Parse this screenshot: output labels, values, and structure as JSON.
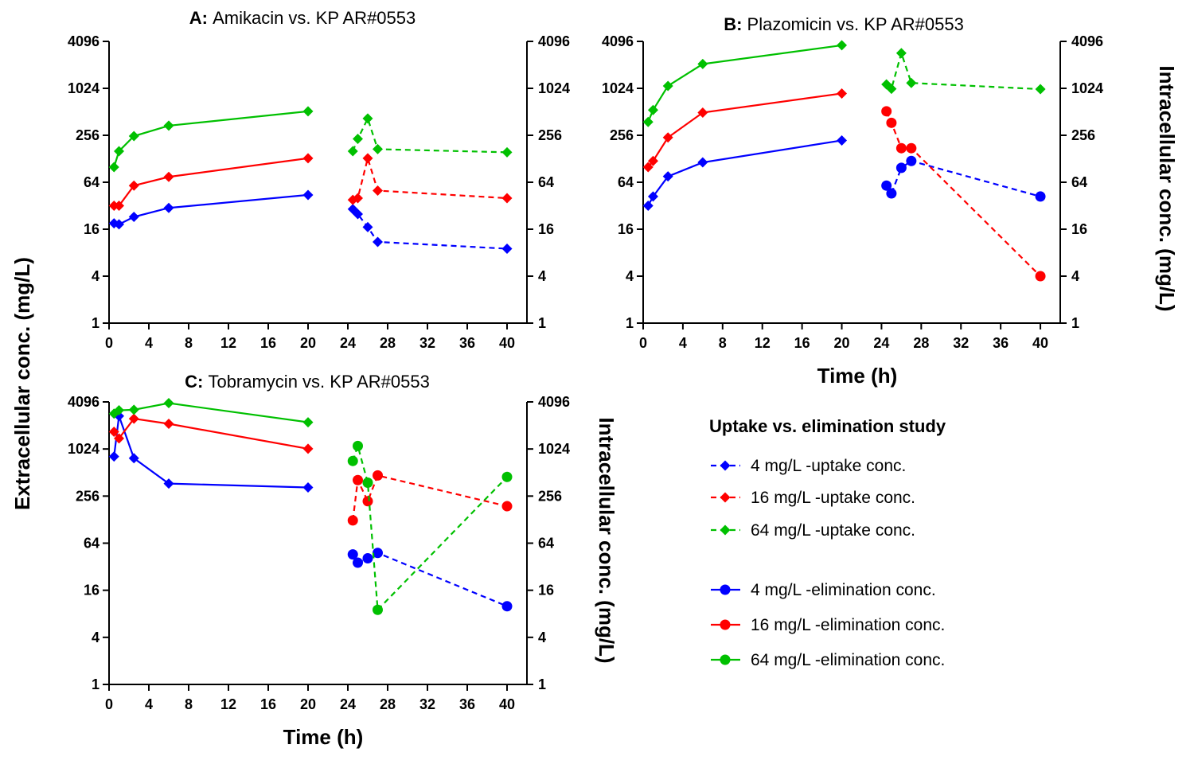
{
  "figure": {
    "ylabel_left": "Extracellular conc. (mg/L)",
    "ylabel_right_B": "Intracellular conc. (mg/L)",
    "ylabel_right_C": "Intracellular conc. (mg/L)",
    "xlabel_B": "Time (h)",
    "xlabel_C": "Time (h)"
  },
  "legend": {
    "title": "Uptake vs. elimination study",
    "entries": [
      {
        "label": "4 mg/L -uptake conc.",
        "color": "#0000ff",
        "line": "dashed",
        "marker": "diamond"
      },
      {
        "label": "16 mg/L -uptake conc.",
        "color": "#ff0000",
        "line": "dashed",
        "marker": "diamond"
      },
      {
        "label": "64 mg/L -uptake conc.",
        "color": "#00c000",
        "line": "dashed",
        "marker": "diamond"
      },
      {
        "label": "4 mg/L -elimination conc.",
        "color": "#0000ff",
        "line": "solid",
        "marker": "circle"
      },
      {
        "label": "16 mg/L -elimination conc.",
        "color": "#ff0000",
        "line": "solid",
        "marker": "circle"
      },
      {
        "label": "64 mg/L -elimination conc.",
        "color": "#00c000",
        "line": "solid",
        "marker": "circle"
      }
    ]
  },
  "chart_data": [
    {
      "panel": "A",
      "type": "line",
      "title_letter": "A:",
      "title": "Amikacin vs. KP AR#0553",
      "x_ticks": [
        "0",
        "4",
        "8",
        "12",
        "16",
        "20",
        "24",
        "28",
        "32",
        "36",
        "40"
      ],
      "xlim": [
        0,
        42
      ],
      "y_scale": "log2",
      "y_ticks": [
        "1",
        "4",
        "16",
        "64",
        "256",
        "1024",
        "4096"
      ],
      "ylim": [
        1,
        4096
      ],
      "extracellular": [
        {
          "color": "#0000ff",
          "marker": "diamond",
          "x": [
            0.5,
            1,
            2.5,
            6,
            20
          ],
          "y": [
            19,
            18.5,
            23,
            30,
            44
          ]
        },
        {
          "color": "#ff0000",
          "marker": "diamond",
          "x": [
            0.5,
            1,
            2.5,
            6,
            20
          ],
          "y": [
            32,
            32,
            58,
            75,
            130
          ]
        },
        {
          "color": "#00c000",
          "marker": "diamond",
          "x": [
            0.5,
            1,
            2.5,
            6,
            20
          ],
          "y": [
            100,
            160,
            250,
            340,
            520
          ]
        }
      ],
      "intracellular": [
        {
          "color": "#0000ff",
          "marker": "diamond",
          "x": [
            24.5,
            25,
            26,
            27,
            40
          ],
          "y": [
            29,
            25,
            17,
            11,
            9
          ]
        },
        {
          "color": "#ff0000",
          "marker": "diamond",
          "x": [
            24.5,
            25,
            26,
            27,
            40
          ],
          "y": [
            38,
            40,
            130,
            50,
            40
          ]
        },
        {
          "color": "#00c000",
          "marker": "diamond",
          "x": [
            24.5,
            25,
            26,
            27,
            40
          ],
          "y": [
            160,
            230,
            420,
            170,
            155
          ]
        }
      ]
    },
    {
      "panel": "B",
      "type": "line",
      "title_letter": "B:",
      "title": "Plazomicin vs. KP AR#0553",
      "x_ticks": [
        "0",
        "4",
        "8",
        "12",
        "16",
        "20",
        "24",
        "28",
        "32",
        "36",
        "40"
      ],
      "xlim": [
        0,
        42
      ],
      "y_scale": "log2",
      "y_ticks": [
        "1",
        "4",
        "16",
        "64",
        "256",
        "1024",
        "4096"
      ],
      "ylim": [
        1,
        4096
      ],
      "extracellular": [
        {
          "color": "#0000ff",
          "marker": "diamond",
          "x": [
            0.5,
            1,
            2.5,
            6,
            20
          ],
          "y": [
            32,
            42,
            76,
            115,
            220
          ]
        },
        {
          "color": "#ff0000",
          "marker": "diamond",
          "x": [
            0.5,
            1,
            2.5,
            6,
            20
          ],
          "y": [
            100,
            120,
            240,
            500,
            880
          ]
        },
        {
          "color": "#00c000",
          "marker": "diamond",
          "x": [
            0.5,
            1,
            2.5,
            6,
            20
          ],
          "y": [
            380,
            540,
            1100,
            2100,
            3650
          ]
        }
      ],
      "intracellular": [
        {
          "color": "#0000ff",
          "marker": "circle",
          "x": [
            24.5,
            25,
            26,
            27,
            40
          ],
          "y": [
            58,
            46,
            98,
            120,
            42
          ]
        },
        {
          "color": "#ff0000",
          "marker": "circle",
          "x": [
            24.5,
            25,
            26,
            27,
            40
          ],
          "y": [
            520,
            370,
            175,
            175,
            4
          ]
        },
        {
          "color": "#00c000",
          "marker": "diamond",
          "x": [
            24.5,
            25,
            26,
            27,
            40
          ],
          "y": [
            1150,
            1010,
            2900,
            1200,
            1000
          ]
        }
      ]
    },
    {
      "panel": "C",
      "type": "line",
      "title_letter": "C:",
      "title": "Tobramycin vs. KP AR#0553",
      "x_ticks": [
        "0",
        "4",
        "8",
        "12",
        "16",
        "20",
        "24",
        "28",
        "32",
        "36",
        "40"
      ],
      "xlim": [
        0,
        42
      ],
      "y_scale": "log2",
      "y_ticks": [
        "1",
        "4",
        "16",
        "64",
        "256",
        "1024",
        "4096"
      ],
      "ylim": [
        1,
        4096
      ],
      "extracellular": [
        {
          "color": "#0000ff",
          "marker": "diamond",
          "x": [
            0.5,
            1,
            2.5,
            6,
            20
          ],
          "y": [
            820,
            2700,
            780,
            370,
            330
          ]
        },
        {
          "color": "#ff0000",
          "marker": "diamond",
          "x": [
            0.5,
            1,
            2.5,
            6,
            20
          ],
          "y": [
            1700,
            1400,
            2500,
            2150,
            1030
          ]
        },
        {
          "color": "#00c000",
          "marker": "diamond",
          "x": [
            0.5,
            1,
            2.5,
            6,
            20
          ],
          "y": [
            2900,
            3200,
            3250,
            3950,
            2250
          ]
        }
      ],
      "intracellular": [
        {
          "color": "#0000ff",
          "marker": "circle",
          "x": [
            24.5,
            25,
            26,
            27,
            40
          ],
          "y": [
            46,
            36,
            41,
            48,
            10
          ]
        },
        {
          "color": "#ff0000",
          "marker": "circle",
          "x": [
            24.5,
            25,
            26,
            27,
            40
          ],
          "y": [
            125,
            410,
            220,
            470,
            190
          ]
        },
        {
          "color": "#00c000",
          "marker": "circle",
          "x": [
            24.5,
            25,
            26,
            27,
            40
          ],
          "y": [
            720,
            1120,
            380,
            9,
            450
          ]
        }
      ]
    }
  ]
}
